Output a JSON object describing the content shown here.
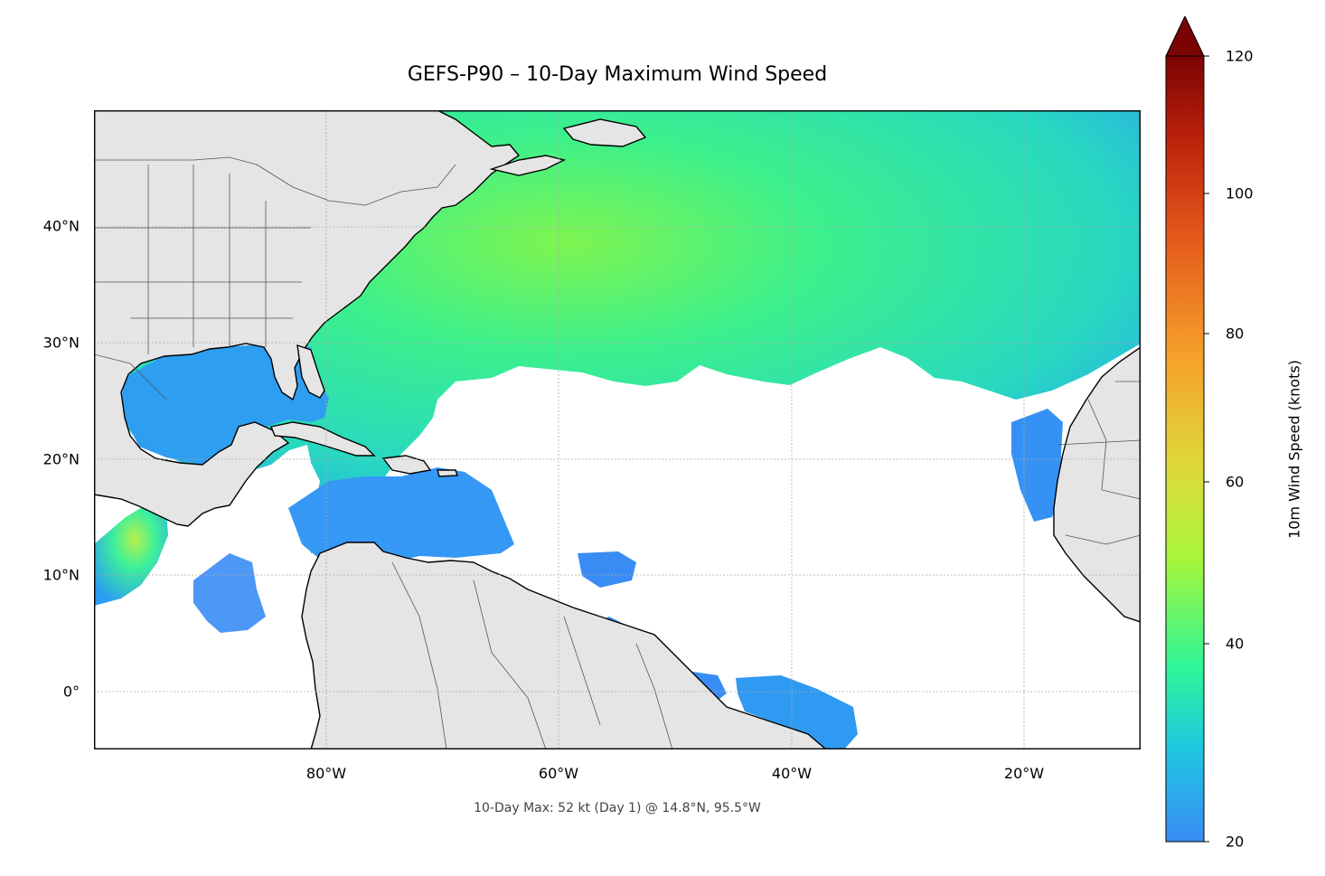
{
  "title": "GEFS-P90 – 10-Day Maximum Wind Speed",
  "footer_note": "10-Day Max: 52 kt (Day 1) @ 14.8°N, 95.5°W",
  "map": {
    "lon_range": [
      -100,
      -10
    ],
    "lat_range": [
      -5,
      50
    ],
    "projection": "PlateCarree",
    "gridlines": true,
    "land_color": "#e5e5e5",
    "ocean_color": "#ffffff",
    "xticks": [
      "80°W",
      "60°W",
      "40°W",
      "20°W"
    ],
    "yticks": [
      "0°",
      "10°N",
      "20°N",
      "30°N",
      "40°N"
    ],
    "max_point": {
      "lat": 14.8,
      "lon": -95.5,
      "value": 52,
      "unit": "kt",
      "day": 1
    }
  },
  "colorbar": {
    "label": "10m Wind Speed (knots)",
    "ticks": [
      "20",
      "40",
      "60",
      "80",
      "100",
      "120"
    ],
    "range": [
      20,
      120
    ],
    "extend": "max",
    "colormap": "turbo-like",
    "colors": [
      "#3a8cf5",
      "#1fc8e0",
      "#2ef59a",
      "#a8f53a",
      "#f5c83a",
      "#f57a1f",
      "#d23c0a",
      "#7a0403"
    ]
  }
}
